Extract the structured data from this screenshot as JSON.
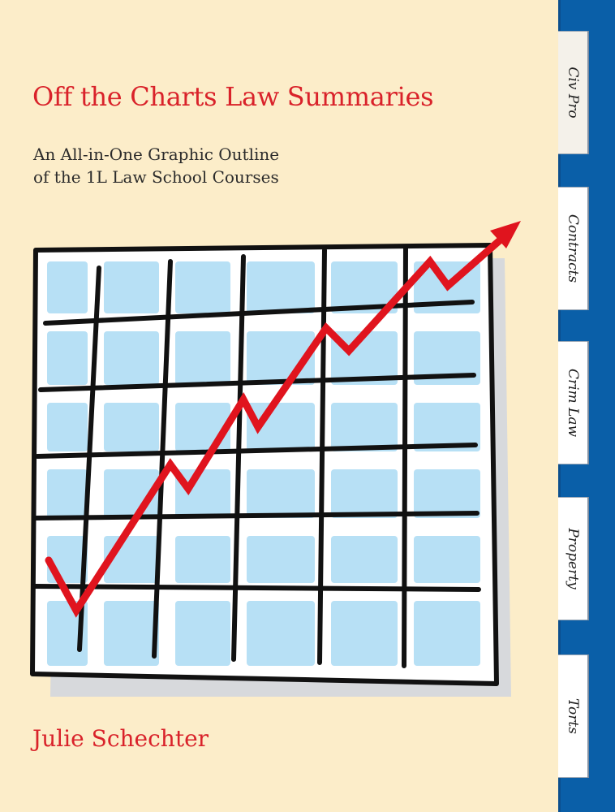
{
  "cover": {
    "title": "Off the Charts Law Summaries",
    "subtitle_line1": "An All-in-One Graphic Outline",
    "subtitle_line2": "of the 1L Law School Courses",
    "author": "Julie Schechter"
  },
  "tabs": [
    {
      "label": "Civ Pro",
      "active": true
    },
    {
      "label": "Contracts",
      "active": false
    },
    {
      "label": "Crim Law",
      "active": false
    },
    {
      "label": "Property",
      "active": false
    },
    {
      "label": "Torts",
      "active": false
    }
  ],
  "colors": {
    "background": "#fcedc9",
    "title_red": "#d9222a",
    "spine_blue": "#0a5fa8",
    "cell_blue": "#b7e0f5",
    "arrow_red": "#e0141e",
    "grid_black": "#111111"
  },
  "illustration": {
    "type": "rising-trend-arrow-on-grid"
  }
}
